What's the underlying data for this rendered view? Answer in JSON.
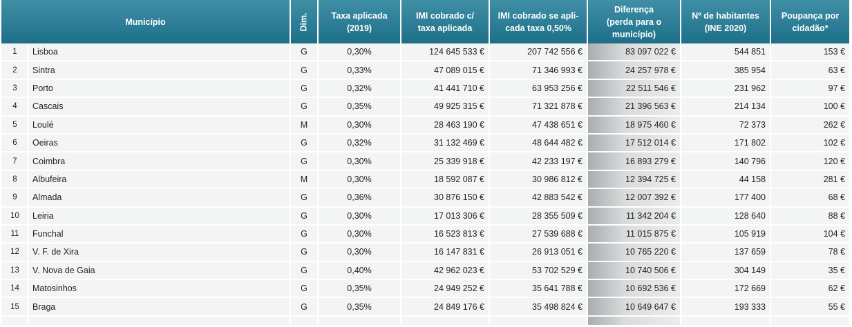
{
  "table": {
    "header": [
      [
        "Município"
      ],
      [
        "Dim."
      ],
      [
        "Taxa aplicada",
        "(2019)"
      ],
      [
        "IMI cobrado c/",
        "taxa aplicada"
      ],
      [
        "IMI cobrado se apli-",
        "cada taxa 0,50%"
      ],
      [
        "Diferença",
        "(perda para o",
        "município)"
      ],
      [
        "Nº de habitantes",
        "(INE 2020)"
      ],
      [
        "Poupança por",
        "cidadão*"
      ]
    ],
    "rows": [
      [
        "1",
        "Lisboa",
        "G",
        "0,30%",
        "124 645 533 €",
        "207 742 556 €",
        "83 097 022 €",
        "544 851",
        "153 €"
      ],
      [
        "2",
        "Sintra",
        "G",
        "0,33%",
        "47 089 015 €",
        "71 346 993 €",
        "24 257 978 €",
        "385 954",
        "63 €"
      ],
      [
        "3",
        "Porto",
        "G",
        "0,32%",
        "41 441 710 €",
        "63 953 256 €",
        "22 511 546 €",
        "231 962",
        "97 €"
      ],
      [
        "4",
        "Cascais",
        "G",
        "0,35%",
        "49 925 315 €",
        "71 321 878 €",
        "21 396 563 €",
        "214 134",
        "100 €"
      ],
      [
        "5",
        "Loulé",
        "M",
        "0,30%",
        "28 463 190 €",
        "47 438 651 €",
        "18 975 460 €",
        "72 373",
        "262 €"
      ],
      [
        "6",
        "Oeiras",
        "G",
        "0,32%",
        "31 132 469 €",
        "48 644 482 €",
        "17 512 014 €",
        "171 802",
        "102 €"
      ],
      [
        "7",
        "Coimbra",
        "G",
        "0,30%",
        "25 339 918 €",
        "42 233 197 €",
        "16 893 279 €",
        "140 796",
        "120 €"
      ],
      [
        "8",
        "Albufeira",
        "M",
        "0,30%",
        "18 592 087 €",
        "30 986 812 €",
        "12 394 725 €",
        "44 158",
        "281 €"
      ],
      [
        "9",
        "Almada",
        "G",
        "0,36%",
        "30 876 150 €",
        "42 883 542 €",
        "12 007 392 €",
        "177 400",
        "68 €"
      ],
      [
        "10",
        "Leiria",
        "G",
        "0,30%",
        "17 013 306 €",
        "28 355 509 €",
        "11 342 204 €",
        "128 640",
        "88 €"
      ],
      [
        "11",
        "Funchal",
        "G",
        "0,30%",
        "16 523 813 €",
        "27 539 688 €",
        "11 015 875 €",
        "105 919",
        "104 €"
      ],
      [
        "12",
        "V. F. de Xira",
        "G",
        "0,30%",
        "16 147 831 €",
        "26 913 051 €",
        "10 765 220 €",
        "137 659",
        "78 €"
      ],
      [
        "13",
        "V. Nova de Gaia",
        "G",
        "0,40%",
        "42 962 023 €",
        "53 702 529 €",
        "10 740 506 €",
        "304 149",
        "35 €"
      ],
      [
        "14",
        "Matosinhos",
        "G",
        "0,35%",
        "24 949 252 €",
        "35 641 788 €",
        "10 692 536 €",
        "172 669",
        "62 €"
      ],
      [
        "15",
        "Braga",
        "G",
        "0,35%",
        "24 849 176 €",
        "35 498 824 €",
        "10 649 647 €",
        "193 333",
        "55 €"
      ]
    ]
  }
}
